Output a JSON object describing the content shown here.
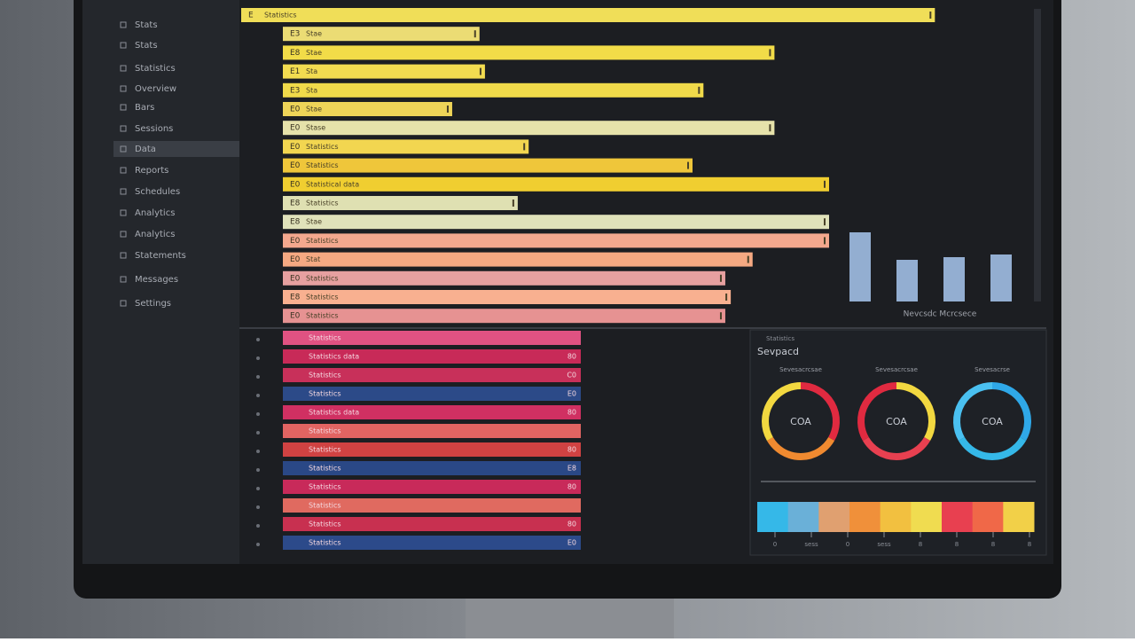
{
  "sidebar": {
    "items": [
      "Stats",
      "Stats",
      "Statistics",
      "Overview",
      "Bars",
      "Sessions",
      "Data",
      "Reports",
      "Schedules",
      "Analytics",
      "Analytics",
      "Statements",
      "Messages",
      "Settings"
    ],
    "selected": 6
  },
  "top_bars": [
    {
      "code": "E",
      "label": "Statistics",
      "value": 127,
      "color": "#f0de58"
    },
    {
      "code": "E3",
      "label": "Stae",
      "value": 36,
      "color": "#ebdc74"
    },
    {
      "code": "E8",
      "label": "Stae",
      "value": 90,
      "color": "#f2dc48"
    },
    {
      "code": "E1",
      "label": "Sta",
      "value": 37,
      "color": "#f2dc50"
    },
    {
      "code": "E3",
      "label": "Sta",
      "value": 77,
      "color": "#f0da4a"
    },
    {
      "code": "E0",
      "label": "Stae",
      "value": 31,
      "color": "#eed458"
    },
    {
      "code": "E0",
      "label": "Stase",
      "value": 90,
      "color": "#e6e2aa"
    },
    {
      "code": "E0",
      "label": "Statistics",
      "value": 45,
      "color": "#f2d650"
    },
    {
      "code": "E0",
      "label": "Statistics",
      "value": 75,
      "color": "#efc63a"
    },
    {
      "code": "E0",
      "label": "Statistical data",
      "value": 100,
      "color": "#f0ce30"
    },
    {
      "code": "E8",
      "label": "Statistics",
      "value": 43,
      "color": "#dfe0b2"
    },
    {
      "code": "E8",
      "label": "Stae",
      "value": 100,
      "color": "#e0e2ba"
    },
    {
      "code": "E0",
      "label": "Statistics",
      "value": 100,
      "color": "#f4a88e"
    },
    {
      "code": "E0",
      "label": "Stat",
      "value": 86,
      "color": "#f5a982"
    },
    {
      "code": "E0",
      "label": "Statistics",
      "value": 81,
      "color": "#e6a0a0"
    },
    {
      "code": "E8",
      "label": "Statistics",
      "value": 82,
      "color": "#f8b090"
    },
    {
      "code": "E0",
      "label": "Statistics",
      "value": 81,
      "color": "#e69292"
    }
  ],
  "lower_bars": [
    {
      "label": "Statistics",
      "end": "",
      "color": "#e05282"
    },
    {
      "label": "Statistics data",
      "end": "80",
      "color": "#c82a58"
    },
    {
      "label": "Statistics",
      "end": "C0",
      "color": "#c8305a"
    },
    {
      "label": "Statistics",
      "end": "E0",
      "color": "#2c4a88"
    },
    {
      "label": "Statistics data",
      "end": "80",
      "color": "#d03062"
    },
    {
      "label": "Statistics",
      "end": "",
      "color": "#e26462"
    },
    {
      "label": "Statistics",
      "end": "80",
      "color": "#d04242"
    },
    {
      "label": "Statistics",
      "end": "E8",
      "color": "#2a4886"
    },
    {
      "label": "Statistics",
      "end": "80",
      "color": "#c82a5a"
    },
    {
      "label": "Statistics",
      "end": "",
      "color": "#e06a60"
    },
    {
      "label": "Statistics",
      "end": "80",
      "color": "#c83050"
    },
    {
      "label": "Statistics",
      "end": "E0",
      "color": "#2c4a8a"
    }
  ],
  "mini_chart": {
    "type": "bar",
    "caption": "Nevcsdc Mcrcsece",
    "values": [
      78,
      47,
      50,
      53
    ],
    "color": "#a8c8f0"
  },
  "panel": {
    "kicker": "Statistics",
    "title": "Sevpacd",
    "donuts": [
      {
        "label": "Sevesacrcsae",
        "center": "COA"
      },
      {
        "label": "Sevesacrcsae",
        "center": "COA"
      },
      {
        "label": "Sevesacrse",
        "center": "COA"
      }
    ],
    "strip_colors": [
      "#35b8e8",
      "#6ab0d8",
      "#e0a070",
      "#f0903a",
      "#f2c040",
      "#f0dc50",
      "#e84050",
      "#f06848",
      "#f2d048"
    ],
    "strip_ticks": [
      "0",
      "sess",
      "0",
      "sess",
      "8",
      "8",
      "8",
      "8"
    ]
  }
}
